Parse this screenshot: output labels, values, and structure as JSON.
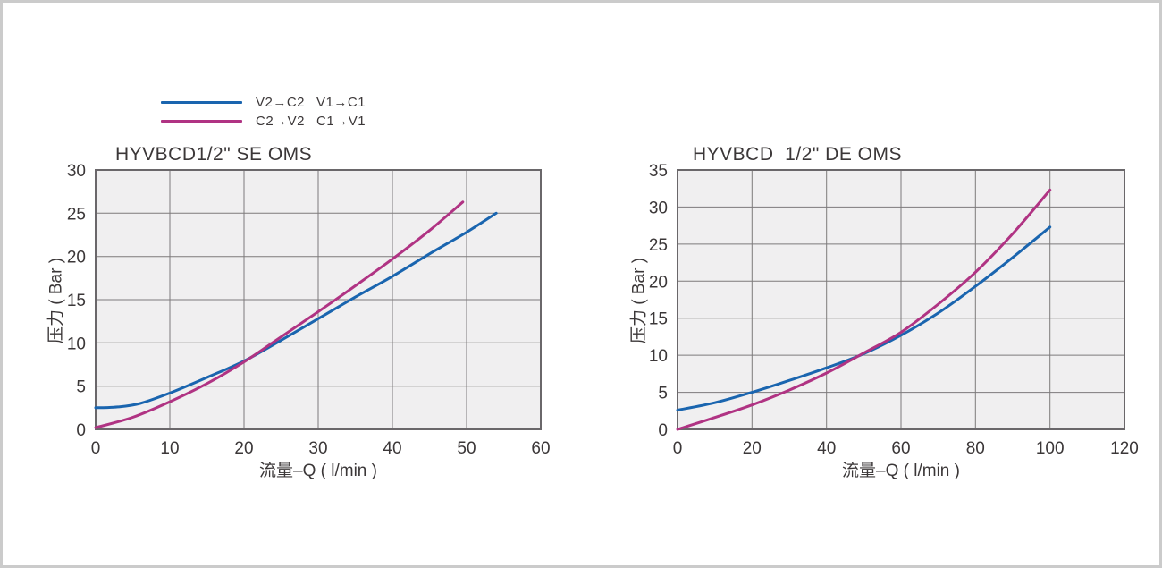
{
  "colors": {
    "blue": "#1a65af",
    "magenta": "#b03383",
    "grid": "#7d7a7b",
    "plot_border": "#6a676a",
    "plot_bg": "#f0eff0",
    "text": "#3b3738",
    "frame_border": "#cbcbcb"
  },
  "legend": {
    "rows": [
      {
        "color": "blue",
        "labels": [
          "V2→C2",
          "V1→C1"
        ]
      },
      {
        "color": "magenta",
        "labels": [
          "C2→V2",
          "C1→V1"
        ]
      }
    ]
  },
  "chart_data": [
    {
      "type": "line",
      "title": "HYVBCD1/2\" SE OMS",
      "xlabel": "流量–Q ( l/min )",
      "ylabel": "压力 ( Bar )",
      "xlim": [
        0,
        60
      ],
      "ylim": [
        0,
        30
      ],
      "xticks": [
        0,
        10,
        20,
        30,
        40,
        50,
        60
      ],
      "yticks": [
        0,
        5,
        10,
        15,
        20,
        25,
        30
      ],
      "grid": true,
      "legend_position": "top-left-outside",
      "series": [
        {
          "name": "V2→C2 V1→C1",
          "color": "blue",
          "points": [
            [
              0,
              2.5
            ],
            [
              3,
              2.6
            ],
            [
              6,
              3.0
            ],
            [
              10,
              4.2
            ],
            [
              15,
              6.0
            ],
            [
              20,
              7.9
            ],
            [
              25,
              10.3
            ],
            [
              30,
              12.8
            ],
            [
              35,
              15.3
            ],
            [
              40,
              17.7
            ],
            [
              45,
              20.3
            ],
            [
              50,
              22.8
            ],
            [
              54,
              25.0
            ]
          ]
        },
        {
          "name": "C2→V2 C1→V1",
          "color": "magenta",
          "points": [
            [
              0,
              0.2
            ],
            [
              5,
              1.4
            ],
            [
              10,
              3.2
            ],
            [
              15,
              5.3
            ],
            [
              20,
              7.8
            ],
            [
              25,
              10.7
            ],
            [
              30,
              13.6
            ],
            [
              35,
              16.6
            ],
            [
              40,
              19.7
            ],
            [
              45,
              23.0
            ],
            [
              49.5,
              26.3
            ]
          ]
        }
      ]
    },
    {
      "type": "line",
      "title": "HYVBCD  1/2\" DE OMS",
      "xlabel": "流量–Q ( l/min )",
      "ylabel": "压力 ( Bar )",
      "xlim": [
        0,
        120
      ],
      "ylim": [
        0,
        35
      ],
      "xticks": [
        0,
        20,
        40,
        60,
        80,
        100,
        120
      ],
      "yticks": [
        0,
        5,
        10,
        15,
        20,
        25,
        30,
        35
      ],
      "grid": true,
      "series": [
        {
          "name": "V2→C2 V1→C1",
          "color": "blue",
          "points": [
            [
              0,
              2.6
            ],
            [
              10,
              3.6
            ],
            [
              20,
              5.0
            ],
            [
              30,
              6.6
            ],
            [
              40,
              8.3
            ],
            [
              50,
              10.2
            ],
            [
              60,
              12.7
            ],
            [
              70,
              15.7
            ],
            [
              80,
              19.3
            ],
            [
              90,
              23.2
            ],
            [
              100,
              27.3
            ]
          ]
        },
        {
          "name": "C2→V2 C1→V1",
          "color": "magenta",
          "points": [
            [
              0,
              0.0
            ],
            [
              10,
              1.6
            ],
            [
              20,
              3.3
            ],
            [
              30,
              5.3
            ],
            [
              40,
              7.6
            ],
            [
              50,
              10.3
            ],
            [
              60,
              13.1
            ],
            [
              70,
              16.9
            ],
            [
              80,
              21.2
            ],
            [
              90,
              26.4
            ],
            [
              100,
              32.3
            ]
          ]
        }
      ]
    }
  ]
}
